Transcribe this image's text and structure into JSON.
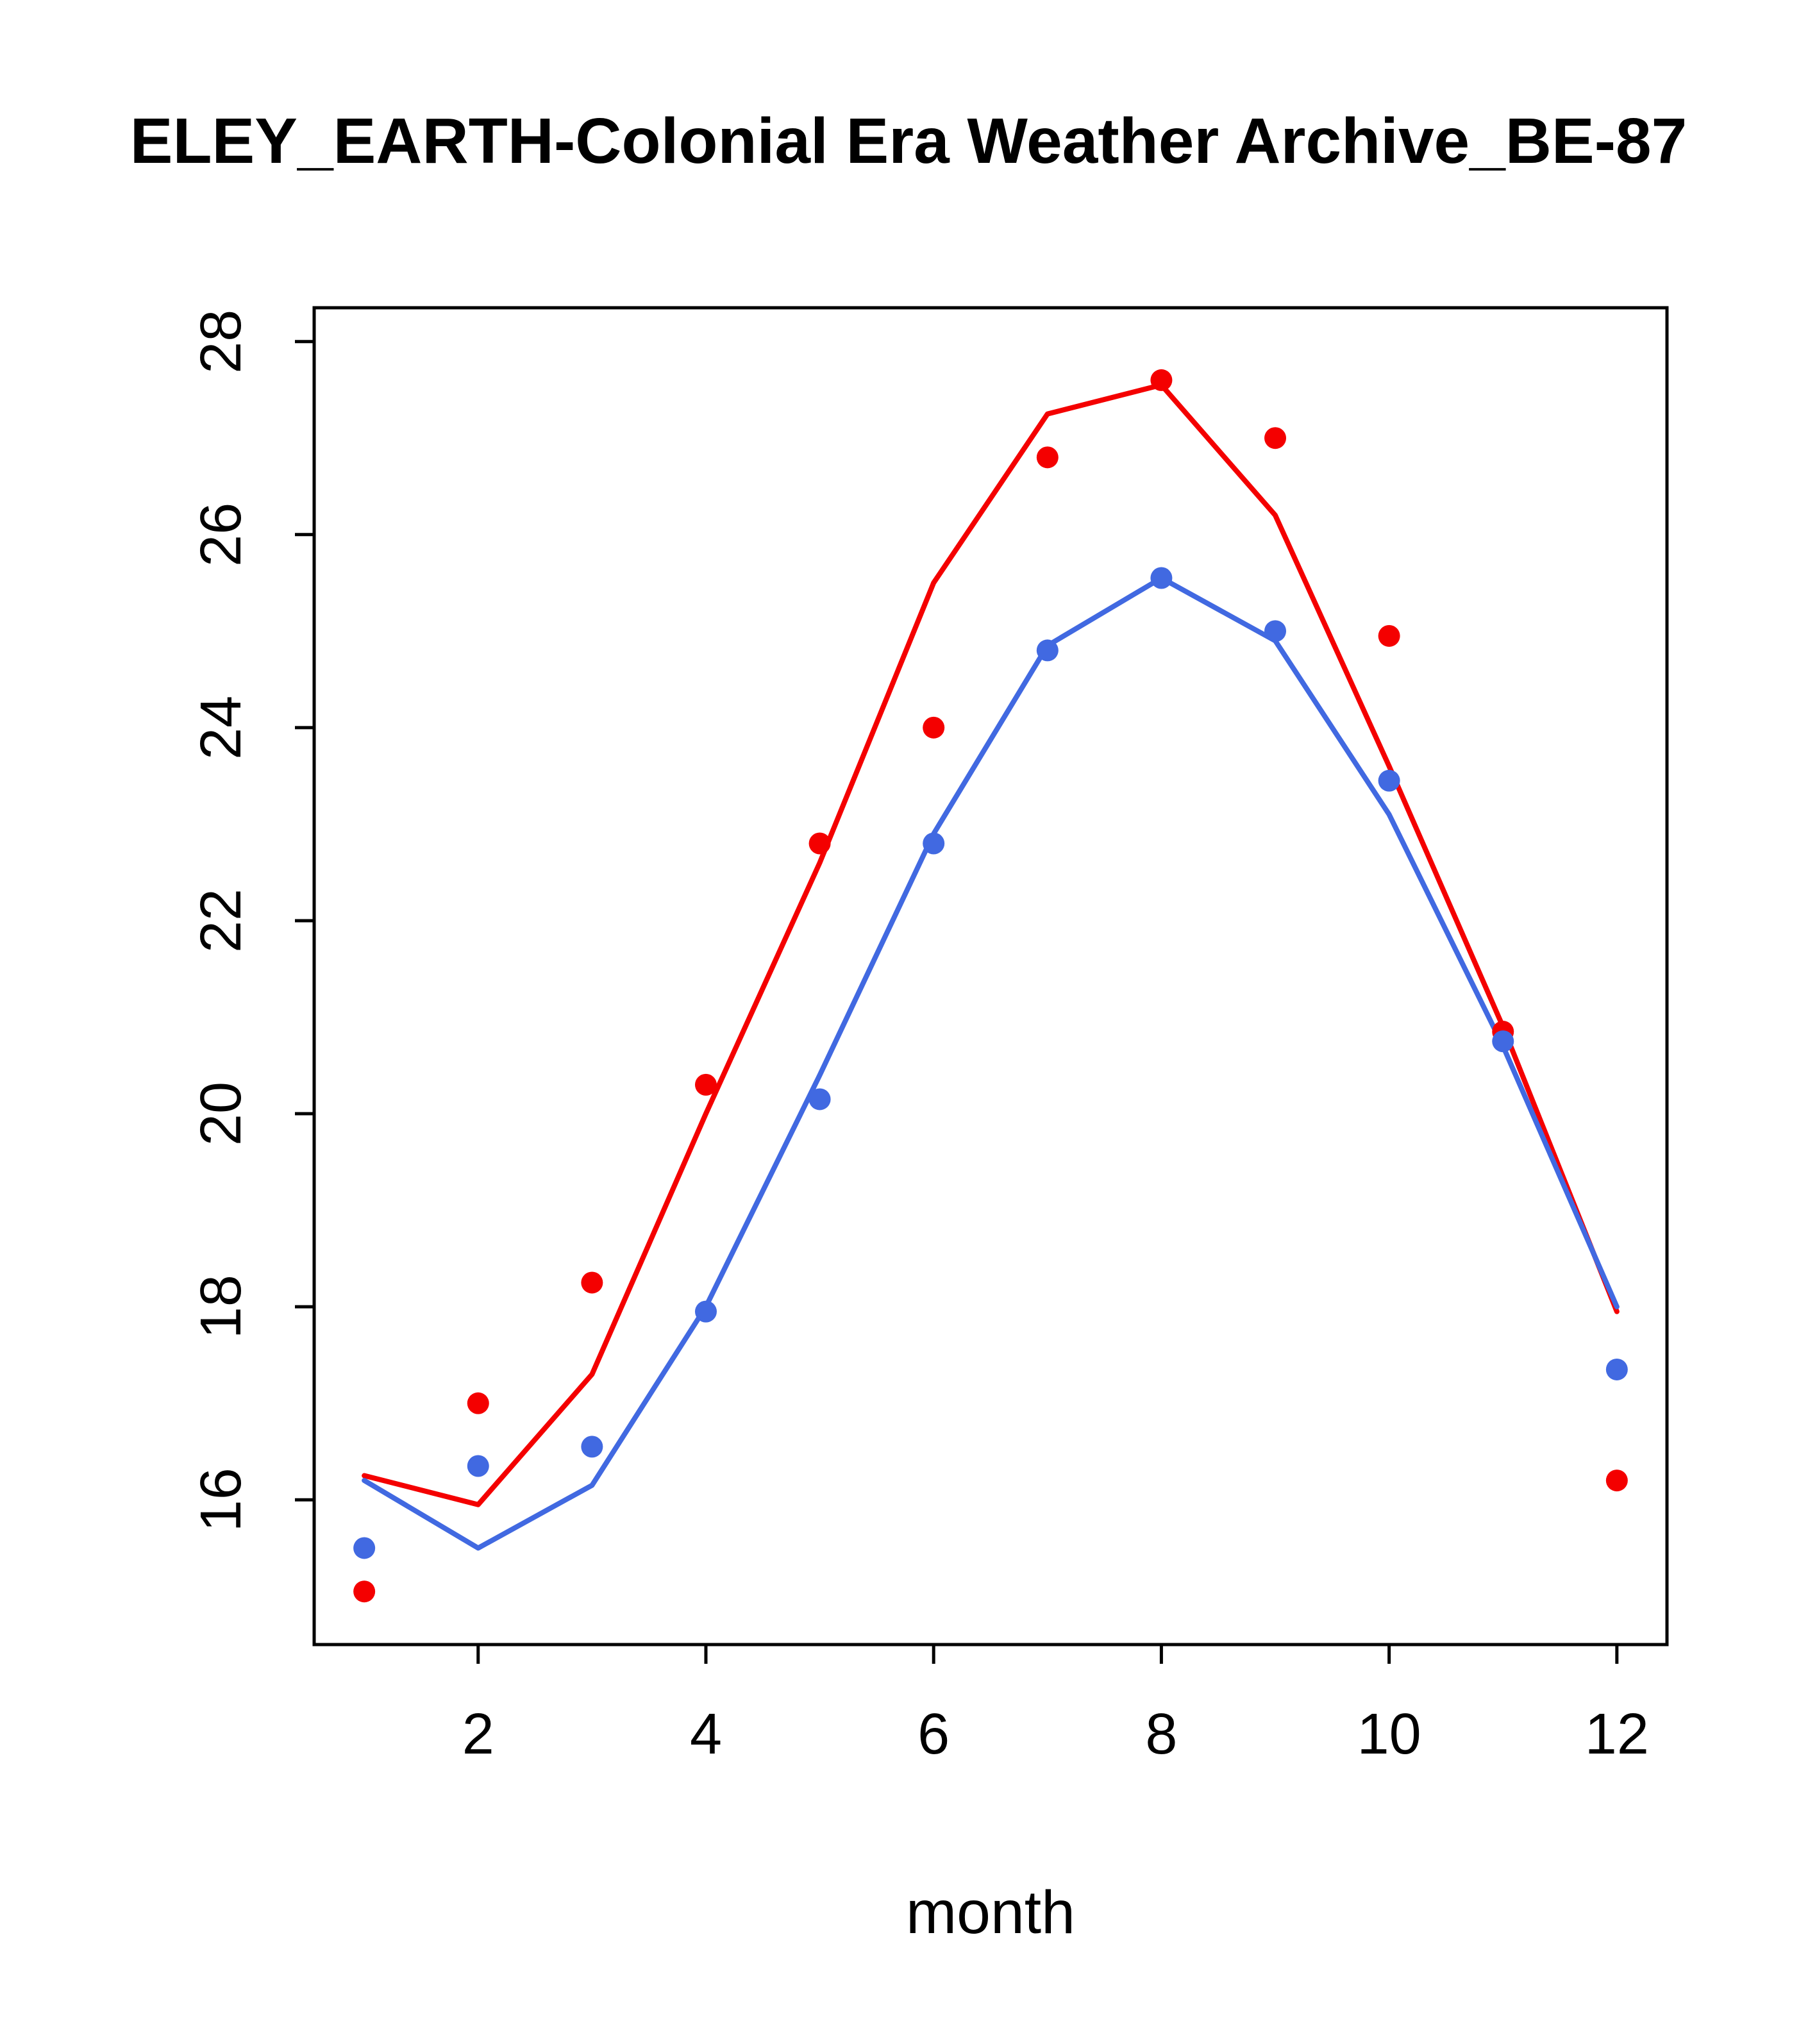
{
  "chart_data": {
    "type": "line",
    "title": "ELEY_EARTH-Colonial Era Weather Archive_BE-87",
    "xlabel": "month",
    "ylabel": "",
    "x": [
      1,
      2,
      3,
      4,
      5,
      6,
      7,
      8,
      9,
      10,
      11,
      12
    ],
    "xticks": [
      2,
      4,
      6,
      8,
      10,
      12
    ],
    "yticks": [
      16,
      18,
      20,
      22,
      24,
      26,
      28
    ],
    "xlim": [
      0.56,
      12.44
    ],
    "ylim": [
      14.5,
      28.35
    ],
    "grid": "off",
    "legend": "none",
    "colors": {
      "red": "#f40000",
      "blue": "#4169e1"
    },
    "series": [
      {
        "name": "red-fit-line",
        "kind": "line",
        "color": "#f40000",
        "values": [
          16.25,
          15.95,
          17.3,
          20.0,
          22.6,
          25.5,
          27.25,
          27.55,
          26.2,
          23.6,
          20.9,
          17.95
        ]
      },
      {
        "name": "blue-fit-line",
        "kind": "line",
        "color": "#4169e1",
        "values": [
          16.2,
          15.5,
          16.15,
          18.0,
          20.4,
          22.9,
          24.85,
          25.55,
          24.9,
          23.1,
          20.7,
          18.0
        ]
      },
      {
        "name": "red-observed-points",
        "kind": "points",
        "color": "#f40000",
        "values": [
          15.05,
          17.0,
          18.25,
          20.3,
          22.8,
          24.0,
          26.8,
          27.6,
          27.0,
          24.95,
          20.85,
          16.2
        ]
      },
      {
        "name": "blue-observed-points",
        "kind": "points",
        "color": "#4169e1",
        "values": [
          15.5,
          16.35,
          16.55,
          17.95,
          20.15,
          22.8,
          24.8,
          25.55,
          25.0,
          23.45,
          20.75,
          17.35
        ]
      }
    ]
  }
}
